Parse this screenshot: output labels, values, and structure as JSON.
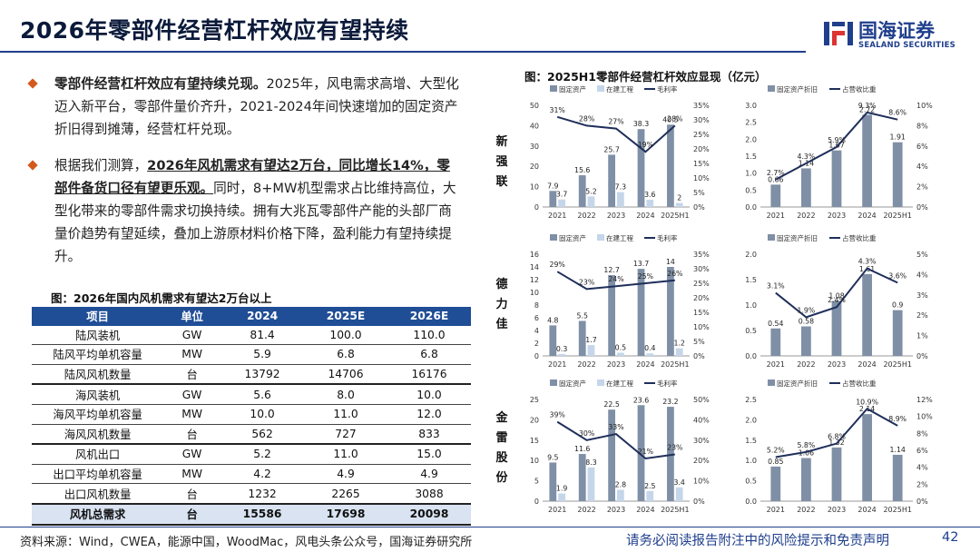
{
  "title": "2026年零部件经营杠杆效应有望持续",
  "logo": {
    "cn": "国海证券",
    "en": "SEALAND SECURITIES"
  },
  "bullets": [
    {
      "bold": "零部件经营杠杆效应有望持续兑现。",
      "text": "2025年，风电需求高增、大型化迈入新平台，零部件量价齐升，2021-2024年间快速增加的固定资产折旧得到摊薄，经营杠杆兑现。"
    },
    {
      "pre": "根据我们测算，",
      "underline": "2026年风机需求有望达2万台，同比增长14%，零部件备货口径有望更乐观。",
      "text": "同时，8+MW机型需求占比维持高位，大型化带来的零部件需求切换持续。拥有大兆瓦零部件产能的头部厂商量价趋势有望延续，叠加上游原材料价格下降，盈利能力有望持续提升。"
    }
  ],
  "table": {
    "caption": "图：2026年国内风机需求有望达2万台以上",
    "headers": [
      "项目",
      "单位",
      "2024",
      "2025E",
      "2026E"
    ],
    "rows": [
      [
        "陆风装机",
        "GW",
        "81.4",
        "100.0",
        "110.0"
      ],
      [
        "陆风平均单机容量",
        "MW",
        "5.9",
        "6.8",
        "6.8"
      ],
      [
        "陆风风机数量",
        "台",
        "13792",
        "14706",
        "16176"
      ],
      [
        "海风装机",
        "GW",
        "5.6",
        "8.0",
        "10.0"
      ],
      [
        "海风平均单机容量",
        "MW",
        "10.0",
        "11.0",
        "12.0"
      ],
      [
        "海风风机数量",
        "台",
        "562",
        "727",
        "833"
      ],
      [
        "风机出口",
        "GW",
        "5.2",
        "11.0",
        "15.0"
      ],
      [
        "出口平均单机容量",
        "MW",
        "4.2",
        "4.9",
        "4.9"
      ],
      [
        "出口风机数量",
        "台",
        "1232",
        "2265",
        "3088"
      ]
    ],
    "total": [
      "风机总需求",
      "台",
      "15586",
      "17698",
      "20098"
    ]
  },
  "chart_caption": "图：2025H1零部件经营杠杆效应显现（亿元）",
  "companies": [
    "新强联",
    "德力佳",
    "金雷股份"
  ],
  "colors": {
    "fixed": "#7f8fa6",
    "construction": "#c5d6ea",
    "line": "#1f2f5a",
    "accent": "#d35a1e",
    "brand": "#1f3e8c"
  },
  "chart_data": [
    {
      "type": "bar",
      "company": "新强联",
      "categories": [
        "2021",
        "2022",
        "2023",
        "2024",
        "2025H1"
      ],
      "legend": [
        "固定资产",
        "在建工程",
        "毛利率"
      ],
      "series": [
        {
          "name": "固定资产",
          "values": [
            7.9,
            15.6,
            25.7,
            38.3,
            40.5
          ]
        },
        {
          "name": "在建工程",
          "values": [
            3.7,
            5.2,
            7.3,
            3.6,
            2.0
          ]
        },
        {
          "name": "毛利率",
          "type": "line",
          "axis": "right",
          "values": [
            31,
            28,
            27,
            19,
            28
          ]
        }
      ],
      "ylim": [
        0,
        50
      ],
      "yticks": [
        0,
        10,
        20,
        30,
        40,
        50
      ],
      "y2lim": [
        0,
        35
      ],
      "y2ticks": [
        "0%",
        "5%",
        "10%",
        "15%",
        "20%",
        "25%",
        "30%",
        "35%"
      ]
    },
    {
      "type": "bar",
      "company": "新强联",
      "categories": [
        "2021",
        "2022",
        "2023",
        "2024",
        "2025H1"
      ],
      "legend": [
        "固定资产折旧",
        "占营收比重"
      ],
      "series": [
        {
          "name": "固定资产折旧",
          "values": [
            0.66,
            1.14,
            1.67,
            2.72,
            1.91
          ]
        },
        {
          "name": "占营收比重",
          "type": "line",
          "axis": "right",
          "values": [
            2.7,
            4.3,
            5.9,
            9.3,
            8.6
          ]
        }
      ],
      "ylim": [
        0,
        3.0
      ],
      "yticks": [
        "0.0",
        "0.5",
        "1.0",
        "1.5",
        "2.0",
        "2.5",
        "3.0"
      ],
      "y2lim": [
        0,
        10
      ],
      "y2ticks": [
        "0%",
        "2%",
        "4%",
        "6%",
        "8%",
        "10%"
      ]
    },
    {
      "type": "bar",
      "company": "德力佳",
      "categories": [
        "2021",
        "2022",
        "2023",
        "2024",
        "2025H1"
      ],
      "legend": [
        "固定资产",
        "在建工程",
        "毛利率"
      ],
      "series": [
        {
          "name": "固定资产",
          "values": [
            4.8,
            5.5,
            12.7,
            13.7,
            14.0
          ]
        },
        {
          "name": "在建工程",
          "values": [
            0.3,
            1.7,
            0.5,
            0.4,
            1.2
          ]
        },
        {
          "name": "毛利率",
          "type": "line",
          "axis": "right",
          "values": [
            29,
            23,
            24,
            25,
            26
          ]
        }
      ],
      "ylim": [
        0,
        16
      ],
      "yticks": [
        0,
        2,
        4,
        6,
        8,
        10,
        12,
        14,
        16
      ],
      "y2lim": [
        0,
        35
      ],
      "y2ticks": [
        "0%",
        "5%",
        "10%",
        "15%",
        "20%",
        "25%",
        "30%",
        "35%"
      ]
    },
    {
      "type": "bar",
      "company": "德力佳",
      "categories": [
        "2021",
        "2022",
        "2023",
        "2024",
        "2025H1"
      ],
      "legend": [
        "固定资产折旧",
        "占营收比重"
      ],
      "series": [
        {
          "name": "固定资产折旧",
          "values": [
            0.54,
            0.58,
            1.08,
            1.61,
            0.9
          ]
        },
        {
          "name": "占营收比重",
          "type": "line",
          "axis": "right",
          "values": [
            3.1,
            1.9,
            2.4,
            4.3,
            3.6
          ]
        }
      ],
      "ylim": [
        0,
        2.0
      ],
      "yticks": [
        "0.0",
        "0.5",
        "1.0",
        "1.5",
        "2.0"
      ],
      "y2lim": [
        0,
        5
      ],
      "y2ticks": [
        "0%",
        "1%",
        "2%",
        "3%",
        "4%",
        "5%"
      ]
    },
    {
      "type": "bar",
      "company": "金雷股份",
      "categories": [
        "2021",
        "2022",
        "2023",
        "2024",
        "2025H1"
      ],
      "legend": [
        "固定资产",
        "在建工程",
        "毛利率"
      ],
      "series": [
        {
          "name": "固定资产",
          "values": [
            9.5,
            11.6,
            22.5,
            23.6,
            23.2
          ]
        },
        {
          "name": "在建工程",
          "values": [
            1.9,
            8.3,
            2.8,
            2.5,
            3.4
          ]
        },
        {
          "name": "毛利率",
          "type": "line",
          "axis": "right",
          "values": [
            39,
            30,
            33,
            21,
            23
          ]
        }
      ],
      "ylim": [
        0,
        25
      ],
      "yticks": [
        0,
        5,
        10,
        15,
        20,
        25
      ],
      "y2lim": [
        0,
        50
      ],
      "y2ticks": [
        "0%",
        "10%",
        "20%",
        "30%",
        "40%",
        "50%"
      ]
    },
    {
      "type": "bar",
      "company": "金雷股份",
      "categories": [
        "2021",
        "2022",
        "2023",
        "2024",
        "2025H1"
      ],
      "legend": [
        "固定资产折旧",
        "占营收比重"
      ],
      "series": [
        {
          "name": "固定资产折旧",
          "values": [
            0.85,
            1.06,
            1.32,
            2.14,
            1.14
          ]
        },
        {
          "name": "占营收比重",
          "type": "line",
          "axis": "right",
          "values": [
            5.2,
            5.8,
            6.8,
            10.9,
            8.9
          ]
        }
      ],
      "ylim": [
        0,
        2.5
      ],
      "yticks": [
        "0.0",
        "0.5",
        "1.0",
        "1.5",
        "2.0",
        "2.5"
      ],
      "y2lim": [
        0,
        12
      ],
      "y2ticks": [
        "0%",
        "2%",
        "4%",
        "6%",
        "8%",
        "10%",
        "12%"
      ]
    }
  ],
  "footer": {
    "source": "资料来源：Wind，CWEA，能源中国，WoodMac，风电头条公众号，国海证券研究所",
    "disclaimer": "请务必阅读报告附注中的风险提示和免责声明",
    "page": "42"
  }
}
